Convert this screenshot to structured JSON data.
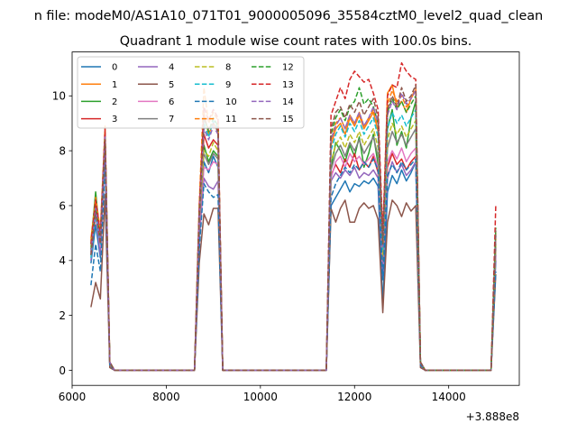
{
  "chart_data": {
    "type": "line",
    "suptitle": "n file: modeM0/AS1A10_071T01_9000005096_35584cztM0_level2_quad_clean",
    "title": "Quadrant 1 module wise count rates with 100.0s bins.",
    "xlabel": "",
    "ylabel": "",
    "offset_text": "+3.888e8",
    "xlim": [
      6000,
      15500
    ],
    "ylim": [
      -0.55,
      11.6
    ],
    "x_ticks": [
      6000,
      8000,
      10000,
      12000,
      14000
    ],
    "x_tick_labels": [
      "6000",
      "8000",
      "10000",
      "12000",
      "14000"
    ],
    "y_ticks": [
      0,
      2,
      4,
      6,
      8,
      10
    ],
    "y_tick_labels": [
      "0",
      "2",
      "4",
      "6",
      "8",
      "10"
    ],
    "grid": false,
    "legend_position": "top-left",
    "legend_columns": 4,
    "x": [
      6400,
      6500,
      6600,
      6700,
      6800,
      6900,
      7000,
      8500,
      8600,
      8700,
      8800,
      8900,
      9000,
      9100,
      9200,
      9300,
      9400,
      11300,
      11400,
      11500,
      11600,
      11700,
      11800,
      11900,
      12000,
      12100,
      12200,
      12300,
      12400,
      12500,
      12600,
      12700,
      12800,
      12900,
      13000,
      13100,
      13200,
      13300,
      13400,
      13500,
      14900,
      15000
    ],
    "series": [
      {
        "name": "0",
        "color": "#1f77b4",
        "dash": false,
        "values": [
          3.9,
          5.3,
          4.1,
          8.2,
          0.2,
          0.0,
          0.0,
          0.0,
          0.0,
          4.6,
          7.6,
          7.2,
          7.8,
          7.4,
          0.0,
          0.0,
          0.0,
          0.0,
          0.0,
          6.0,
          6.3,
          6.6,
          6.9,
          6.5,
          6.8,
          6.7,
          6.9,
          6.8,
          7.0,
          6.7,
          2.4,
          6.5,
          7.1,
          6.8,
          7.3,
          6.9,
          7.2,
          7.6,
          0.2,
          0.0,
          0.0,
          4.0
        ]
      },
      {
        "name": "1",
        "color": "#ff7f0e",
        "dash": false,
        "values": [
          4.8,
          6.2,
          5.0,
          8.5,
          0.3,
          0.0,
          0.0,
          0.0,
          0.0,
          5.8,
          9.4,
          8.6,
          9.0,
          8.7,
          0.0,
          0.0,
          0.0,
          0.0,
          0.0,
          8.2,
          8.8,
          9.0,
          8.6,
          9.2,
          8.9,
          9.3,
          8.8,
          9.1,
          9.4,
          8.7,
          4.7,
          10.1,
          10.4,
          9.6,
          9.8,
          9.4,
          9.9,
          10.2,
          0.3,
          0.0,
          0.0,
          4.8
        ]
      },
      {
        "name": "2",
        "color": "#2ca02c",
        "dash": false,
        "values": [
          4.6,
          6.5,
          4.7,
          8.3,
          0.2,
          0.0,
          0.0,
          0.0,
          0.0,
          5.4,
          8.2,
          7.6,
          8.0,
          7.8,
          0.0,
          0.0,
          0.0,
          0.0,
          0.0,
          7.4,
          8.3,
          8.0,
          7.6,
          8.2,
          7.8,
          8.5,
          7.4,
          7.9,
          8.6,
          7.5,
          4.1,
          8.8,
          9.5,
          8.2,
          8.7,
          8.1,
          9.2,
          9.8,
          0.3,
          0.0,
          0.0,
          4.6
        ]
      },
      {
        "name": "3",
        "color": "#d62728",
        "dash": false,
        "values": [
          4.2,
          6.0,
          4.4,
          8.0,
          0.2,
          0.0,
          0.0,
          0.0,
          0.0,
          5.0,
          8.6,
          8.1,
          8.4,
          8.2,
          0.0,
          0.0,
          0.0,
          0.0,
          0.0,
          7.1,
          7.5,
          7.2,
          7.7,
          7.4,
          7.9,
          7.3,
          7.6,
          7.4,
          7.8,
          7.2,
          3.6,
          7.4,
          7.9,
          7.5,
          7.7,
          7.3,
          7.6,
          7.8,
          0.2,
          0.0,
          0.0,
          4.4
        ]
      },
      {
        "name": "4",
        "color": "#9467bd",
        "dash": false,
        "values": [
          4.0,
          5.8,
          4.2,
          7.9,
          0.2,
          0.0,
          0.0,
          0.0,
          0.0,
          4.8,
          7.0,
          6.7,
          6.6,
          6.9,
          0.0,
          0.0,
          0.0,
          0.0,
          0.0,
          6.9,
          7.2,
          7.0,
          7.3,
          7.1,
          7.4,
          7.0,
          7.2,
          7.1,
          7.3,
          7.0,
          3.4,
          7.0,
          7.6,
          7.2,
          7.5,
          7.1,
          7.3,
          7.6,
          0.2,
          0.0,
          0.0,
          4.2
        ]
      },
      {
        "name": "5",
        "color": "#8c564b",
        "dash": false,
        "values": [
          2.3,
          3.2,
          2.6,
          6.4,
          0.1,
          0.0,
          0.0,
          0.0,
          0.0,
          3.9,
          5.7,
          5.3,
          5.9,
          5.9,
          0.0,
          0.0,
          0.0,
          0.0,
          0.0,
          5.9,
          5.4,
          5.9,
          6.2,
          5.4,
          5.4,
          5.9,
          6.1,
          5.9,
          6.0,
          5.5,
          2.1,
          5.4,
          6.2,
          6.0,
          5.6,
          6.1,
          5.8,
          6.0,
          0.1,
          0.0,
          0.0,
          3.5
        ]
      },
      {
        "name": "6",
        "color": "#e377c2",
        "dash": false,
        "values": [
          4.4,
          5.6,
          4.5,
          8.1,
          0.2,
          0.0,
          0.0,
          0.0,
          0.0,
          5.1,
          7.4,
          7.3,
          7.6,
          7.5,
          0.0,
          0.0,
          0.0,
          0.0,
          0.0,
          7.0,
          7.6,
          7.8,
          7.4,
          7.9,
          7.6,
          7.8,
          7.5,
          7.7,
          7.9,
          7.4,
          3.8,
          7.6,
          8.0,
          7.7,
          8.1,
          7.6,
          7.9,
          8.1,
          0.2,
          0.0,
          0.0,
          4.5
        ]
      },
      {
        "name": "7",
        "color": "#7f7f7f",
        "dash": false,
        "values": [
          4.3,
          5.9,
          4.8,
          8.4,
          0.2,
          0.0,
          0.0,
          0.0,
          0.0,
          5.3,
          7.9,
          7.5,
          7.9,
          7.7,
          0.0,
          0.0,
          0.0,
          0.0,
          0.0,
          7.3,
          7.9,
          8.2,
          7.8,
          8.3,
          8.0,
          8.4,
          7.9,
          8.2,
          8.5,
          7.8,
          4.0,
          8.1,
          8.7,
          8.3,
          8.6,
          8.2,
          8.5,
          8.8,
          0.2,
          0.0,
          0.0,
          4.5
        ]
      },
      {
        "name": "8",
        "color": "#bcbd22",
        "dash": true,
        "values": [
          4.5,
          6.1,
          4.9,
          8.6,
          0.3,
          0.0,
          0.0,
          0.0,
          0.0,
          5.6,
          8.0,
          7.8,
          8.3,
          8.0,
          0.0,
          0.0,
          0.0,
          0.0,
          0.0,
          7.6,
          8.2,
          8.5,
          8.1,
          8.6,
          8.3,
          8.7,
          8.2,
          8.5,
          8.8,
          8.1,
          4.2,
          8.4,
          9.0,
          8.6,
          8.9,
          8.5,
          8.8,
          9.1,
          0.3,
          0.0,
          0.0,
          4.7
        ]
      },
      {
        "name": "9",
        "color": "#17becf",
        "dash": true,
        "values": [
          4.1,
          5.7,
          4.6,
          8.7,
          0.3,
          0.0,
          0.0,
          0.0,
          0.0,
          5.9,
          9.0,
          8.5,
          9.1,
          8.8,
          0.0,
          0.0,
          0.0,
          0.0,
          0.0,
          8.0,
          8.6,
          8.9,
          8.5,
          9.0,
          8.7,
          9.1,
          8.6,
          8.9,
          9.2,
          8.5,
          4.4,
          8.8,
          9.4,
          9.0,
          9.3,
          8.9,
          9.2,
          9.5,
          0.3,
          0.0,
          0.0,
          4.9
        ]
      },
      {
        "name": "10",
        "color": "#1f77b4",
        "dash": true,
        "values": [
          3.1,
          4.6,
          3.6,
          7.6,
          0.2,
          0.0,
          0.0,
          0.0,
          0.0,
          4.4,
          6.8,
          6.5,
          6.3,
          6.4,
          0.0,
          0.0,
          0.0,
          0.0,
          0.0,
          6.3,
          6.8,
          7.1,
          7.4,
          7.2,
          7.5,
          7.3,
          7.6,
          7.4,
          7.7,
          7.3,
          3.3,
          7.1,
          7.5,
          7.2,
          7.6,
          7.3,
          7.5,
          7.7,
          0.2,
          0.0,
          0.0,
          3.6
        ]
      },
      {
        "name": "11",
        "color": "#ff7f0e",
        "dash": true,
        "values": [
          4.7,
          6.3,
          5.1,
          8.9,
          0.3,
          0.0,
          0.0,
          0.0,
          0.0,
          6.0,
          10.3,
          9.0,
          9.4,
          9.1,
          0.0,
          0.0,
          0.0,
          0.0,
          0.0,
          8.4,
          9.0,
          9.2,
          8.8,
          9.3,
          9.0,
          9.4,
          8.9,
          9.2,
          9.5,
          8.8,
          4.8,
          9.7,
          10.2,
          9.8,
          10.0,
          9.6,
          9.9,
          10.3,
          0.3,
          0.0,
          0.0,
          5.0
        ]
      },
      {
        "name": "12",
        "color": "#2ca02c",
        "dash": true,
        "values": [
          4.4,
          6.0,
          4.8,
          8.6,
          0.3,
          0.0,
          0.0,
          0.0,
          0.0,
          5.7,
          9.2,
          8.7,
          9.2,
          8.9,
          0.0,
          0.0,
          0.0,
          0.0,
          0.0,
          8.6,
          9.2,
          9.5,
          9.1,
          9.6,
          9.8,
          10.3,
          9.7,
          9.9,
          9.6,
          9.0,
          4.6,
          9.4,
          9.9,
          9.5,
          9.8,
          9.4,
          9.7,
          10.0,
          0.3,
          0.0,
          0.0,
          5.2
        ]
      },
      {
        "name": "13",
        "color": "#d62728",
        "dash": true,
        "values": [
          4.6,
          6.2,
          5.0,
          8.8,
          0.3,
          0.0,
          0.0,
          0.0,
          0.0,
          5.9,
          9.6,
          9.1,
          9.5,
          9.2,
          0.0,
          0.0,
          0.0,
          0.0,
          0.0,
          9.3,
          9.8,
          10.3,
          9.9,
          10.6,
          10.9,
          10.7,
          10.5,
          10.6,
          10.1,
          9.5,
          5.0,
          10.0,
          10.4,
          10.3,
          11.2,
          10.9,
          10.7,
          10.6,
          0.3,
          0.0,
          0.0,
          6.0
        ]
      },
      {
        "name": "14",
        "color": "#9467bd",
        "dash": true,
        "values": [
          4.3,
          5.9,
          4.7,
          8.5,
          0.3,
          0.0,
          0.0,
          0.0,
          0.0,
          5.6,
          8.8,
          8.4,
          8.9,
          8.6,
          0.0,
          0.0,
          0.0,
          0.0,
          0.0,
          8.4,
          8.9,
          9.2,
          8.8,
          9.3,
          9.0,
          9.4,
          8.9,
          9.2,
          9.6,
          9.0,
          4.5,
          9.3,
          9.8,
          9.5,
          10.1,
          9.7,
          9.9,
          10.2,
          0.3,
          0.0,
          0.0,
          4.9
        ]
      },
      {
        "name": "15",
        "color": "#8c564b",
        "dash": true,
        "values": [
          4.2,
          5.8,
          4.6,
          8.4,
          0.3,
          0.0,
          0.0,
          0.0,
          0.0,
          5.5,
          9.2,
          8.8,
          9.0,
          8.7,
          0.0,
          0.0,
          0.0,
          0.0,
          0.0,
          8.8,
          9.4,
          9.6,
          9.2,
          9.7,
          9.4,
          9.8,
          9.3,
          9.6,
          9.9,
          9.2,
          4.6,
          9.5,
          10.0,
          9.6,
          10.3,
          9.8,
          10.0,
          10.4,
          0.3,
          0.0,
          0.0,
          5.1
        ]
      }
    ]
  }
}
